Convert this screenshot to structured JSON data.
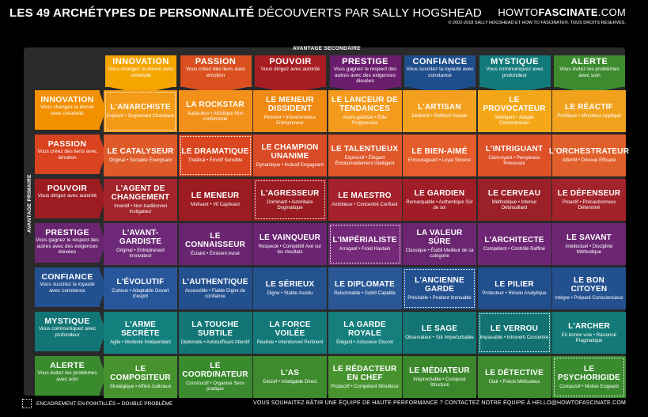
{
  "title": {
    "bold": "LES 49 ARCHÉTYPES DE PERSONNALITÉ",
    "light": "DÉCOUVERTS PAR SALLY HOGSHEAD"
  },
  "brand": {
    "prefix": "HOWTO",
    "bold": "FASCINATE",
    "suffix": ".COM"
  },
  "copyright": "© 2002-2018 SALLY HOGSHEAD ET HOW TO FASCINATE®. TOUS DROITS RÉSERVÉS.",
  "secondary_label": "AVANTAGE SECONDAIRE",
  "primary_label": "AVANTAGE PRIMAIRE",
  "colors": [
    "#f5a500",
    "#d9501e",
    "#a81d22",
    "#6b1d6d",
    "#1e4d8c",
    "#127a7a",
    "#3d8b2f"
  ],
  "row_colors": [
    "#f29000",
    "#d9431f",
    "#9c1c22",
    "#6a2570",
    "#23508f",
    "#137676",
    "#3a8a2e"
  ],
  "columns": [
    {
      "h": "INNOVATION",
      "s": "Vous changez la donne avec créativité"
    },
    {
      "h": "PASSION",
      "s": "Vous créez des liens avec émotion"
    },
    {
      "h": "POUVOIR",
      "s": "Vous dirigez avec autorité"
    },
    {
      "h": "PRESTIGE",
      "s": "Vous gagnez le respect des autres avec des exigences élevées"
    },
    {
      "h": "CONFIANCE",
      "s": "Vous suscitez la loyauté avec constance"
    },
    {
      "h": "MYSTIQUE",
      "s": "Vous communiquez avec profondeur"
    },
    {
      "h": "ALERTE",
      "s": "Vous évitez les problèmes avec soin"
    }
  ],
  "rows": [
    {
      "h": "INNOVATION",
      "s": "Vous changez la donne avec créativité",
      "cells": [
        {
          "n": "L'ANARCHISTE",
          "t": "Explosif • Surprenant Chaotique"
        },
        {
          "n": "LA ROCKSTAR",
          "t": "Audacieux • Artistique Non conformiste"
        },
        {
          "n": "LE MENEUR DISSIDENT",
          "t": "Pionnier • Irrévérencieux Entrepreneur"
        },
        {
          "n": "LE LANCEUR DE TENDANCES",
          "t": "Avant-gardiste • Élite Progressiste"
        },
        {
          "n": "L'ARTISAN",
          "t": "Délibéré • Réfléchi Souple"
        },
        {
          "n": "LE PROVOCATEUR",
          "t": "Intelligent • Adapté Contemporain"
        },
        {
          "n": "LE RÉACTIF",
          "t": "Prolifique • Minutieux Appliqué"
        }
      ]
    },
    {
      "h": "PASSION",
      "s": "Vous créez des liens avec émotion",
      "cells": [
        {
          "n": "LE CATALYSEUR",
          "t": "Original • Sociable Énergisant"
        },
        {
          "n": "LE DRAMATIQUE",
          "t": "Théâtral • Émotif Sensible"
        },
        {
          "n": "LE CHAMPION UNANIME",
          "t": "Dynamique • Inclusif Engageant"
        },
        {
          "n": "LE TALENTUEUX",
          "t": "Expressif • Élégant Émotionnellement intelligent"
        },
        {
          "n": "LE BIEN-AIMÉ",
          "t": "Encourageant • Loyal Sincère"
        },
        {
          "n": "L'INTRIGUANT",
          "t": "Clairvoyant • Perspicace Prévenant"
        },
        {
          "n": "L'ORCHESTRATEUR",
          "t": "Attentif • Dévoué Efficace"
        }
      ]
    },
    {
      "h": "POUVOIR",
      "s": "Vous dirigez avec autorité",
      "cells": [
        {
          "n": "L'AGENT DE CHANGEMENT",
          "t": "Inventif • Non traditionnel Instigateur"
        },
        {
          "n": "LE MENEUR",
          "t": "Motivant • Vif Captivant"
        },
        {
          "n": "L'AGRESSEUR",
          "t": "Dominant • Autoritaire Dogmatique"
        },
        {
          "n": "LE MAESTRO",
          "t": "Ambitieux • Concentré Confiant"
        },
        {
          "n": "LE GARDIEN",
          "t": "Remarquable • Authentique Sûr de soi"
        },
        {
          "n": "LE CERVEAU",
          "t": "Méthodique • Intense Débrouillard"
        },
        {
          "n": "LE DÉFENSEUR",
          "t": "Proactif • Précautionneux Déterminé"
        }
      ]
    },
    {
      "h": "PRESTIGE",
      "s": "Vous gagnez le respect des autres avec des exigences élevées",
      "cells": [
        {
          "n": "L'AVANT-GARDISTE",
          "t": "Original • Entreprenant Innovateur"
        },
        {
          "n": "LE CONNAISSEUR",
          "t": "Éclairé • Éminent Avisé"
        },
        {
          "n": "LE VAINQUEUR",
          "t": "Respecté • Compétitif Axé sur les résultats"
        },
        {
          "n": "L'IMPÉRIALISTE",
          "t": "Arrogant • Froid Hautain"
        },
        {
          "n": "LA VALEUR SÛRE",
          "t": "Classique • Établi Meilleur de sa catégorie"
        },
        {
          "n": "L'ARCHITECTE",
          "t": "Compétent • Contrôlé Raffiné"
        },
        {
          "n": "LE SAVANT",
          "t": "Intellectuel • Discipliné Méthodique"
        }
      ]
    },
    {
      "h": "CONFIANCE",
      "s": "Vous suscitez la loyauté avec constance",
      "cells": [
        {
          "n": "L'ÉVOLUTIF",
          "t": "Curieux • Adaptable Ouvert d'esprit"
        },
        {
          "n": "L'AUTHENTIQUE",
          "t": "Accessible • Fiable Digne de confiance"
        },
        {
          "n": "LE SÉRIEUX",
          "t": "Digne • Stable Assidu"
        },
        {
          "n": "LE DIPLOMATE",
          "t": "Raisonnable • Subtil Capable"
        },
        {
          "n": "L'ANCIENNE GARDE",
          "t": "Prévisible • Prudent Immuable"
        },
        {
          "n": "LE PILIER",
          "t": "Protecteur • Résolu Analytique"
        },
        {
          "n": "LE BON CITOYEN",
          "t": "Intègre • Préparé Consciencieux"
        }
      ]
    },
    {
      "h": "MYSTIQUE",
      "s": "Vous communiquez avec profondeur",
      "cells": [
        {
          "n": "L'ARME SECRÈTE",
          "t": "Agile • Modeste Indépendant"
        },
        {
          "n": "LA TOUCHE SUBTILE",
          "t": "Diplomate • Autosuffisant Attentif"
        },
        {
          "n": "LA FORCE VOILÉE",
          "t": "Réaliste • Intentionnel Pertinent"
        },
        {
          "n": "LA GARDE ROYALE",
          "t": "Élégant • Astucieux Discret"
        },
        {
          "n": "LE SAGE",
          "t": "Observateur • Sûr Imperturbable"
        },
        {
          "n": "LE VERROU",
          "t": "Impassible • Introverti Concentré"
        },
        {
          "n": "L'ARCHER",
          "t": "En bonne voie • Raisonné Pragmatique"
        }
      ]
    },
    {
      "h": "ALERTE",
      "s": "Vous évitez les problèmes avec soin",
      "cells": [
        {
          "n": "LE COMPOSITEUR",
          "t": "Stratégique • Affiné Judicieux"
        },
        {
          "n": "LE COORDINATEUR",
          "t": "Constructif • Organisé Sens pratique"
        },
        {
          "n": "L'AS",
          "t": "Décisif • Infatigable Direct"
        },
        {
          "n": "LE RÉDACTEUR EN CHEF",
          "t": "Productif • Compétent Minutieux"
        },
        {
          "n": "LE MÉDIATEUR",
          "t": "Irréprochable • Composé Structuré"
        },
        {
          "n": "LE DÉTECTIVE",
          "t": "Clair • Précis Méticuleux"
        },
        {
          "n": "LE PSYCHORIGIDE",
          "t": "Compulsif • Motivé Exigeant"
        }
      ]
    }
  ],
  "cell_colors": [
    [
      "#f39a16",
      "#f2901a",
      "#f08a12",
      "#f49a1c",
      "#f3a01e",
      "#f4a818",
      "#f0a21c"
    ],
    [
      "#de5a28",
      "#d9461f",
      "#d94b26",
      "#e0572a",
      "#e55e2c",
      "#de5028",
      "#e15f2a"
    ],
    [
      "#a3242a",
      "#9c1c22",
      "#9a1c22",
      "#a5212c",
      "#a01c26",
      "#9c2028",
      "#a3232a"
    ],
    [
      "#6e2a78",
      "#6a2570",
      "#6a2472",
      "#742878",
      "#6a2670",
      "#6e2674",
      "#6c2672"
    ],
    [
      "#28569a",
      "#23508f",
      "#24528e",
      "#2a5896",
      "#23508f",
      "#214e8c",
      "#23508f"
    ],
    [
      "#14807e",
      "#137676",
      "#127878",
      "#157f7d",
      "#127574",
      "#127272",
      "#137a78"
    ],
    [
      "#45922f",
      "#3a8a2e",
      "#3e8a2e",
      "#47942f",
      "#3b882c",
      "#3e8c2f",
      "#3a8a2e"
    ]
  ],
  "dotted_cells": [
    [
      0,
      0
    ],
    [
      1,
      1
    ],
    [
      2,
      2
    ],
    [
      3,
      3
    ],
    [
      4,
      4
    ],
    [
      5,
      5
    ],
    [
      6,
      6
    ]
  ],
  "footer_left": "ENCADREMENT EN POINTILLÉS = DOUBLE PROBLÈME",
  "footer_right": "VOUS SOUHAITEZ BÂTIR UNE ÉQUIPE DE HAUTE PERFORMANCE ? CONTACTEZ NOTRE ÉQUIPE À HELLO@HOWTOFASCINATE.COM"
}
